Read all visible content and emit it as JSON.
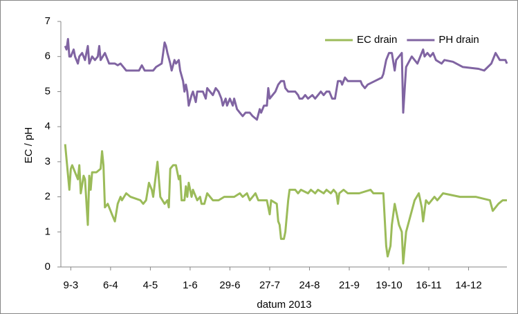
{
  "chart_data": {
    "type": "line",
    "x_label": "datum 2013",
    "y_label": "EC / pH",
    "xlim": [
      -7,
      307
    ],
    "ylim": [
      0,
      7
    ],
    "yticks": [
      0,
      1,
      2,
      3,
      4,
      5,
      6,
      7
    ],
    "xticks": [
      {
        "value": 0,
        "label": "9-3"
      },
      {
        "value": 28,
        "label": "6-4"
      },
      {
        "value": 56,
        "label": "4-5"
      },
      {
        "value": 84,
        "label": "1-6"
      },
      {
        "value": 112,
        "label": "29-6"
      },
      {
        "value": 140,
        "label": "27-7"
      },
      {
        "value": 168,
        "label": "24-8"
      },
      {
        "value": 196,
        "label": "21-9"
      },
      {
        "value": 224,
        "label": "19-10"
      },
      {
        "value": 252,
        "label": "16-11"
      },
      {
        "value": 280,
        "label": "14-12"
      }
    ],
    "grid": false,
    "legend": "top-right",
    "series": [
      {
        "name": "EC drain",
        "color": "#9bbb59",
        "x": [
          -4,
          -1,
          0,
          1,
          5,
          6,
          7,
          9,
          10,
          12,
          13,
          14,
          15,
          18,
          21,
          22,
          23,
          24,
          26,
          29,
          31,
          33,
          35,
          36,
          39,
          42,
          49,
          51,
          53,
          55,
          57,
          58,
          61,
          63,
          66,
          68,
          69,
          70,
          72,
          74,
          76,
          77,
          78,
          80,
          81,
          82,
          83,
          85,
          86,
          89,
          91,
          92,
          94,
          96,
          100,
          104,
          108,
          115,
          119,
          121,
          124,
          126,
          128,
          130,
          132,
          136,
          138,
          140,
          141,
          145,
          146,
          147,
          148,
          150,
          151,
          153,
          154,
          158,
          160,
          162,
          167,
          169,
          172,
          174,
          178,
          180,
          183,
          185,
          187,
          188,
          189,
          192,
          195,
          203,
          211,
          213,
          220,
          222,
          223,
          225,
          226,
          228,
          229,
          231,
          233,
          234,
          236,
          240,
          242,
          245,
          247,
          248,
          250,
          252,
          256,
          258,
          262,
          274,
          285,
          295,
          297,
          301,
          304,
          307
        ],
        "values": [
          3.5,
          2.2,
          2.8,
          2.9,
          2.5,
          2.9,
          2.1,
          2.6,
          2.5,
          1.2,
          2.6,
          2.2,
          2.7,
          2.7,
          2.8,
          3.3,
          2.9,
          1.7,
          1.8,
          1.5,
          1.3,
          1.8,
          2.0,
          1.9,
          2.1,
          2.0,
          1.9,
          1.8,
          1.9,
          2.4,
          2.2,
          2.0,
          3.0,
          2.0,
          1.8,
          1.9,
          1.7,
          2.8,
          2.9,
          2.9,
          2.5,
          2.6,
          1.9,
          1.9,
          2.3,
          2.0,
          2.4,
          2.0,
          2.2,
          1.9,
          2.0,
          1.8,
          1.8,
          2.1,
          1.9,
          1.9,
          2.0,
          2.0,
          2.1,
          2.0,
          2.1,
          1.9,
          2.0,
          2.1,
          1.9,
          1.9,
          1.9,
          1.5,
          1.9,
          1.8,
          1.3,
          1.2,
          0.8,
          0.8,
          1.0,
          1.9,
          2.2,
          2.2,
          2.1,
          2.2,
          2.1,
          2.2,
          2.1,
          2.2,
          2.1,
          2.2,
          2.1,
          2.2,
          2.1,
          1.8,
          2.1,
          2.2,
          2.1,
          2.1,
          2.2,
          2.1,
          2.1,
          0.6,
          0.3,
          0.6,
          1.2,
          1.8,
          1.6,
          1.2,
          1.0,
          0.1,
          1.0,
          1.6,
          1.9,
          2.1,
          1.7,
          1.3,
          1.9,
          1.8,
          2.0,
          1.9,
          2.1,
          2.0,
          2.0,
          1.9,
          1.6,
          1.8,
          1.9,
          1.9
        ]
      },
      {
        "name": "PH drain",
        "color": "#8064a2",
        "x": [
          -4,
          -3,
          -2,
          -1,
          0,
          2,
          3,
          5,
          6,
          8,
          10,
          12,
          13,
          15,
          17,
          19,
          20,
          21,
          24,
          27,
          31,
          33,
          35,
          37,
          39,
          48,
          50,
          52,
          58,
          60,
          64,
          66,
          67,
          68,
          70,
          71,
          73,
          74,
          76,
          77,
          79,
          80,
          81,
          82,
          83,
          85,
          86,
          88,
          89,
          93,
          95,
          96,
          100,
          102,
          104,
          106,
          107,
          109,
          110,
          112,
          114,
          115,
          117,
          119,
          121,
          123,
          126,
          128,
          131,
          133,
          134,
          136,
          138,
          139,
          140,
          142,
          144,
          146,
          148,
          150,
          151,
          153,
          158,
          160,
          161,
          163,
          165,
          167,
          170,
          172,
          176,
          178,
          180,
          182,
          184,
          186,
          188,
          190,
          191,
          193,
          195,
          204,
          205,
          207,
          209,
          214,
          219,
          220,
          222,
          224,
          226,
          228,
          229,
          233,
          234,
          236,
          240,
          242,
          244,
          246,
          248,
          249,
          251,
          253,
          255,
          257,
          261,
          263,
          269,
          276,
          287,
          291,
          296,
          299,
          302,
          306,
          307
        ],
        "values": [
          6.3,
          6.2,
          6.5,
          6.0,
          6.0,
          6.2,
          6.0,
          5.8,
          6.0,
          6.1,
          5.9,
          6.3,
          5.8,
          6.0,
          5.9,
          6.0,
          6.3,
          5.9,
          6.1,
          5.8,
          5.8,
          5.75,
          5.8,
          5.7,
          5.6,
          5.6,
          5.75,
          5.6,
          5.6,
          5.7,
          5.8,
          6.4,
          6.3,
          6.1,
          5.8,
          5.6,
          5.9,
          5.8,
          5.9,
          5.6,
          5.3,
          5.0,
          5.2,
          5.0,
          4.6,
          4.9,
          5.0,
          4.7,
          5.0,
          5.0,
          4.8,
          5.1,
          4.9,
          5.1,
          5.0,
          4.8,
          4.6,
          4.8,
          4.6,
          4.8,
          4.6,
          4.8,
          4.5,
          4.4,
          4.3,
          4.4,
          4.4,
          4.3,
          4.2,
          4.5,
          4.4,
          4.6,
          4.6,
          5.1,
          4.8,
          4.9,
          5.0,
          5.2,
          5.3,
          5.3,
          5.1,
          5.0,
          5.0,
          4.9,
          4.8,
          4.8,
          4.9,
          4.8,
          4.9,
          4.8,
          5.0,
          4.9,
          5.0,
          5.0,
          4.8,
          4.8,
          5.3,
          5.3,
          5.2,
          5.4,
          5.3,
          5.3,
          5.2,
          5.1,
          5.2,
          5.3,
          5.4,
          5.5,
          5.9,
          6.1,
          6.1,
          5.6,
          5.9,
          6.1,
          4.4,
          5.7,
          6.0,
          5.9,
          5.8,
          6.0,
          6.2,
          6.0,
          6.1,
          6.0,
          6.1,
          5.9,
          5.8,
          5.9,
          5.85,
          5.7,
          5.65,
          5.6,
          5.8,
          6.1,
          5.9,
          5.9,
          5.8
        ]
      }
    ]
  }
}
